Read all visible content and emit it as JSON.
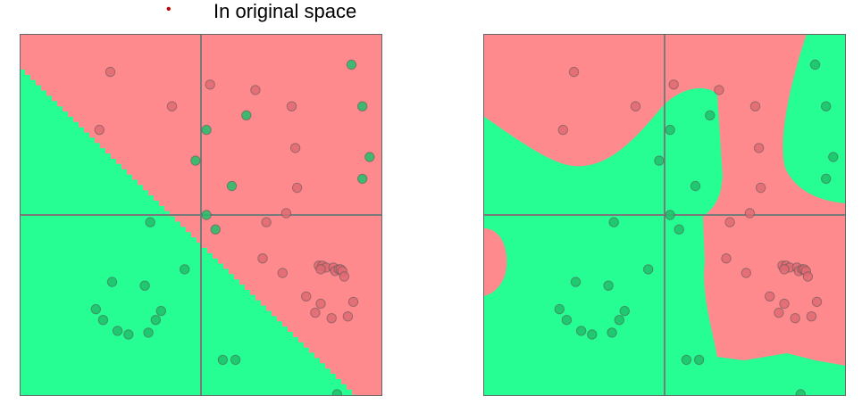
{
  "header": {
    "bullet": "•",
    "title": "In original space"
  },
  "colors": {
    "red_region": "#FF8A8E",
    "green_region": "#26FD92",
    "red_point": "#E06A72",
    "green_point": "#1FBF6A",
    "axis_line": "#7A7A7A",
    "frame": "#666666"
  },
  "chart_data": [
    {
      "type": "scatter",
      "title": "",
      "xlim": [
        -1,
        1
      ],
      "ylim": [
        -1,
        1
      ],
      "boundary": "linear",
      "series": [
        {
          "class": "red",
          "points": [
            [
              -0.5,
              0.79
            ],
            [
              0.05,
              0.72
            ],
            [
              0.3,
              0.69
            ],
            [
              -0.16,
              0.6
            ],
            [
              0.5,
              0.6
            ],
            [
              -0.56,
              0.47
            ],
            [
              0.52,
              0.37
            ],
            [
              0.53,
              0.15
            ],
            [
              0.47,
              0.01
            ],
            [
              0.36,
              -0.04
            ],
            [
              0.34,
              -0.24
            ],
            [
              0.45,
              -0.32
            ],
            [
              0.65,
              -0.28
            ],
            [
              0.67,
              -0.28
            ],
            [
              0.69,
              -0.29
            ],
            [
              0.66,
              -0.3
            ],
            [
              0.73,
              -0.29
            ],
            [
              0.74,
              -0.31
            ],
            [
              0.76,
              -0.3
            ],
            [
              0.77,
              -0.3
            ],
            [
              0.78,
              -0.31
            ],
            [
              0.79,
              -0.34
            ],
            [
              0.58,
              -0.45
            ],
            [
              0.66,
              -0.49
            ],
            [
              0.84,
              -0.48
            ],
            [
              0.63,
              -0.54
            ],
            [
              0.72,
              -0.57
            ],
            [
              0.81,
              -0.56
            ]
          ]
        },
        {
          "class": "green",
          "points": [
            [
              0.83,
              0.83
            ],
            [
              0.25,
              0.55
            ],
            [
              0.89,
              0.6
            ],
            [
              0.03,
              0.47
            ],
            [
              -0.03,
              0.3
            ],
            [
              0.93,
              0.32
            ],
            [
              0.17,
              0.16
            ],
            [
              0.89,
              0.2
            ],
            [
              0.03,
              0.0
            ],
            [
              -0.28,
              -0.04
            ],
            [
              0.08,
              -0.08
            ],
            [
              -0.09,
              -0.3
            ],
            [
              -0.49,
              -0.37
            ],
            [
              -0.31,
              -0.39
            ],
            [
              -0.58,
              -0.52
            ],
            [
              -0.22,
              -0.53
            ],
            [
              -0.54,
              -0.58
            ],
            [
              -0.25,
              -0.58
            ],
            [
              -0.46,
              -0.64
            ],
            [
              -0.29,
              -0.65
            ],
            [
              -0.4,
              -0.66
            ],
            [
              0.12,
              -0.8
            ],
            [
              0.19,
              -0.8
            ],
            [
              0.75,
              -0.99
            ]
          ]
        }
      ]
    },
    {
      "type": "scatter",
      "title": "",
      "xlim": [
        -1,
        1
      ],
      "ylim": [
        -1,
        1
      ],
      "boundary": "nonlinear",
      "series": [
        {
          "class": "red",
          "points": [
            [
              -0.5,
              0.79
            ],
            [
              0.05,
              0.72
            ],
            [
              0.3,
              0.69
            ],
            [
              -0.16,
              0.6
            ],
            [
              0.5,
              0.6
            ],
            [
              -0.56,
              0.47
            ],
            [
              0.52,
              0.37
            ],
            [
              0.53,
              0.15
            ],
            [
              0.47,
              0.01
            ],
            [
              0.36,
              -0.04
            ],
            [
              0.34,
              -0.24
            ],
            [
              0.45,
              -0.32
            ],
            [
              0.65,
              -0.28
            ],
            [
              0.67,
              -0.28
            ],
            [
              0.69,
              -0.29
            ],
            [
              0.66,
              -0.3
            ],
            [
              0.73,
              -0.29
            ],
            [
              0.74,
              -0.31
            ],
            [
              0.76,
              -0.3
            ],
            [
              0.77,
              -0.3
            ],
            [
              0.78,
              -0.31
            ],
            [
              0.79,
              -0.34
            ],
            [
              0.58,
              -0.45
            ],
            [
              0.66,
              -0.49
            ],
            [
              0.84,
              -0.48
            ],
            [
              0.63,
              -0.54
            ],
            [
              0.72,
              -0.57
            ],
            [
              0.81,
              -0.56
            ]
          ]
        },
        {
          "class": "green",
          "points": [
            [
              0.83,
              0.83
            ],
            [
              0.25,
              0.55
            ],
            [
              0.89,
              0.6
            ],
            [
              0.03,
              0.47
            ],
            [
              -0.03,
              0.3
            ],
            [
              0.93,
              0.32
            ],
            [
              0.17,
              0.16
            ],
            [
              0.89,
              0.2
            ],
            [
              0.03,
              0.0
            ],
            [
              -0.28,
              -0.04
            ],
            [
              0.08,
              -0.08
            ],
            [
              -0.09,
              -0.3
            ],
            [
              -0.49,
              -0.37
            ],
            [
              -0.31,
              -0.39
            ],
            [
              -0.58,
              -0.52
            ],
            [
              -0.22,
              -0.53
            ],
            [
              -0.54,
              -0.58
            ],
            [
              -0.25,
              -0.58
            ],
            [
              -0.46,
              -0.64
            ],
            [
              -0.29,
              -0.65
            ],
            [
              -0.4,
              -0.66
            ],
            [
              0.12,
              -0.8
            ],
            [
              0.19,
              -0.8
            ],
            [
              0.75,
              -0.99
            ]
          ]
        }
      ]
    }
  ]
}
